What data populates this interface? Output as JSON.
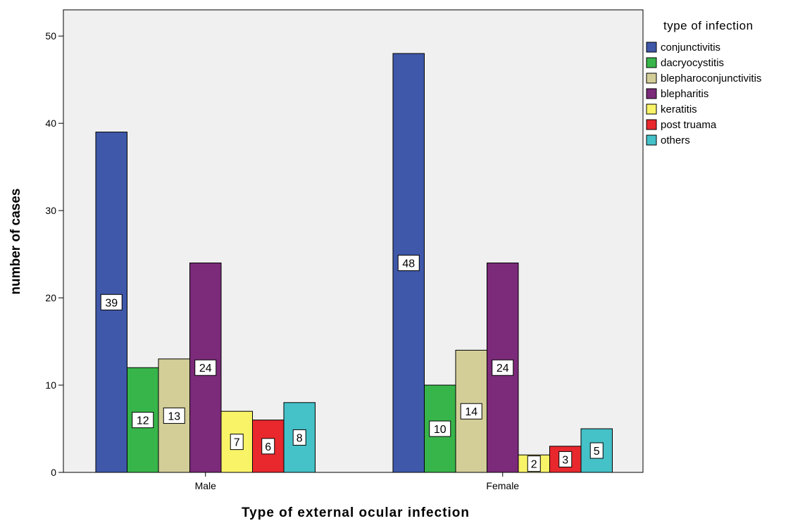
{
  "chart_data": {
    "type": "bar",
    "categories": [
      "Male",
      "Female"
    ],
    "xlabel": "Type of external ocular infection",
    "ylabel": "number of cases",
    "ylim": [
      0,
      53
    ],
    "yticks": [
      0,
      10,
      20,
      30,
      40,
      50
    ],
    "grid": false,
    "legend_title": "type of infection",
    "legend_position": "right",
    "series": [
      {
        "name": "conjunctivitis",
        "values": [
          39,
          48
        ],
        "color": "#3f58aa"
      },
      {
        "name": "dacryocystitis",
        "values": [
          12,
          10
        ],
        "color": "#38b54a"
      },
      {
        "name": "blepharoconjunctivitis",
        "values": [
          13,
          14
        ],
        "color": "#d3ce98"
      },
      {
        "name": "blepharitis",
        "values": [
          24,
          24
        ],
        "color": "#7c2a7a"
      },
      {
        "name": "keratitis",
        "values": [
          7,
          2
        ],
        "color": "#f9f368"
      },
      {
        "name": "post truama",
        "values": [
          6,
          3
        ],
        "color": "#e8282d"
      },
      {
        "name": "others",
        "values": [
          8,
          5
        ],
        "color": "#45c1c8"
      }
    ],
    "colors": {
      "plot_background": "#f0f0f0",
      "axis": "#000000"
    }
  }
}
